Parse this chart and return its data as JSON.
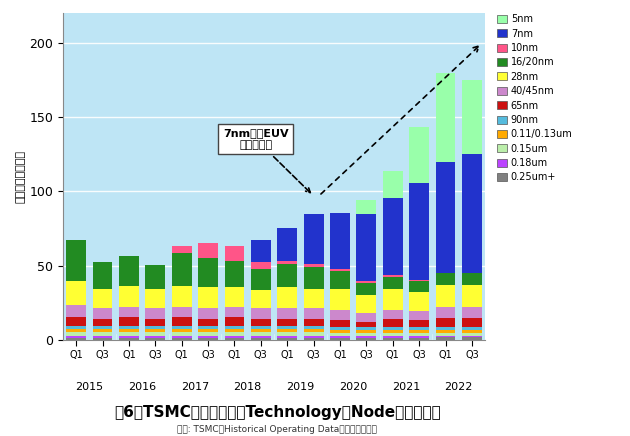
{
  "quarter_labels": [
    "Q1",
    "Q3",
    "Q1",
    "Q3",
    "Q1",
    "Q3",
    "Q1",
    "Q3",
    "Q1",
    "Q3",
    "Q1",
    "Q3",
    "Q1",
    "Q3",
    "Q1",
    "Q3"
  ],
  "year_labels": [
    "2015",
    "2016",
    "2017",
    "2018",
    "2019",
    "2020",
    "2021",
    "2022"
  ],
  "year_positions": [
    0.5,
    2.5,
    4.5,
    6.5,
    8.5,
    10.5,
    12.5,
    14.5
  ],
  "layers": {
    "0.25um+": [
      1.5,
      1.5,
      1.5,
      1.5,
      1.5,
      1.5,
      1.5,
      1.5,
      1.5,
      1.5,
      1.5,
      1.5,
      1.5,
      1.5,
      2,
      2
    ],
    "0.18um": [
      1,
      1,
      1,
      1,
      1,
      1,
      1,
      1,
      1,
      1,
      1,
      1,
      1,
      1,
      1,
      1
    ],
    "0.15um": [
      3,
      3,
      3,
      3,
      3,
      3,
      3,
      3,
      3,
      3,
      2,
      2,
      2,
      2,
      2,
      2
    ],
    "0.11/0.13um": [
      2,
      2,
      2,
      2,
      2,
      2,
      2,
      2,
      2,
      2,
      2,
      2,
      2,
      2,
      2,
      2
    ],
    "90nm": [
      2,
      2,
      2,
      2,
      2,
      2,
      2,
      2,
      2,
      2,
      2,
      2,
      2,
      2,
      2,
      2
    ],
    "65nm": [
      6,
      5,
      6,
      5,
      6,
      5,
      6,
      5,
      5,
      5,
      5,
      4,
      6,
      5,
      6,
      6
    ],
    "40/45nm": [
      8,
      7,
      7,
      7,
      7,
      7,
      7,
      7,
      7,
      7,
      7,
      6,
      6,
      6,
      7,
      7
    ],
    "28nm": [
      16,
      13,
      14,
      13,
      14,
      14,
      13,
      12,
      14,
      13,
      14,
      12,
      14,
      13,
      15,
      15
    ],
    "16/20nm": [
      28,
      18,
      20,
      16,
      22,
      20,
      18,
      14,
      16,
      15,
      12,
      8,
      8,
      7,
      8,
      8
    ],
    "10nm": [
      0,
      0,
      0,
      0,
      5,
      10,
      10,
      5,
      2,
      2,
      1,
      1,
      1,
      1,
      0,
      0
    ],
    "7nm": [
      0,
      0,
      0,
      0,
      0,
      0,
      0,
      15,
      22,
      33,
      38,
      45,
      52,
      65,
      75,
      80
    ],
    "5nm": [
      0,
      0,
      0,
      0,
      0,
      0,
      0,
      0,
      0,
      0,
      0,
      10,
      18,
      38,
      60,
      50
    ]
  },
  "colors": {
    "0.25um+": "#808080",
    "0.18um": "#BB44FF",
    "0.15um": "#BBEEAA",
    "0.11/0.13um": "#FFAA00",
    "90nm": "#55BBDD",
    "65nm": "#CC1111",
    "40/45nm": "#CC88CC",
    "28nm": "#FFFF33",
    "16/20nm": "#228B22",
    "10nm": "#FF5588",
    "7nm": "#2233CC",
    "5nm": "#99FFAA"
  },
  "legend_order": [
    "5nm",
    "7nm",
    "10nm",
    "16/20nm",
    "28nm",
    "40/45nm",
    "65nm",
    "90nm",
    "0.11/0.13um",
    "0.15um",
    "0.18um",
    "0.25um+"
  ],
  "ylim": [
    0,
    220
  ],
  "yticks": [
    0,
    50,
    100,
    150,
    200
  ],
  "bg_color": "#BEE5F5",
  "annotation_text": "7nm＋にEUV\nを量産適用",
  "title": "囶6　TSMCの四半期毎のTechnology・Node別の売上高",
  "subtitle": "出所: TSMCのHistorical Operating Dataを基に筆者作成",
  "ylabel": "売上高（億ドル）"
}
